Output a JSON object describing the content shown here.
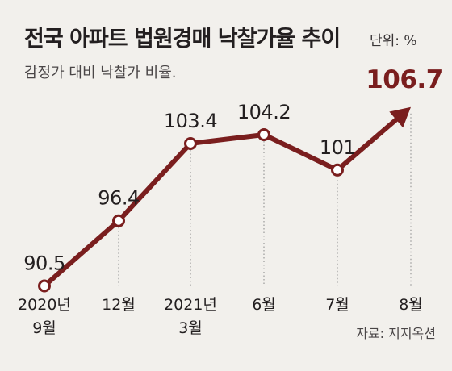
{
  "header": {
    "title": "전국 아파트 법원경매 낙찰가율 추이",
    "unit": "단위: %",
    "subtitle": "감정가 대비 낙찰가 비율."
  },
  "footer": {
    "source": "자료: 지지옥션"
  },
  "colors": {
    "line": "#7a1e1e",
    "text": "#231f20",
    "background": "#f2f0ec",
    "gridline": "#9a9a9a"
  },
  "chart_data": {
    "type": "line",
    "categories": [
      [
        "2020년",
        "9월"
      ],
      [
        "12월"
      ],
      [
        "2021년",
        "3월"
      ],
      [
        "6월"
      ],
      [
        "7월"
      ],
      [
        "8월"
      ]
    ],
    "series": [
      {
        "values": [
          90.5,
          96.4,
          103.4,
          104.2,
          101,
          106.7
        ]
      }
    ],
    "data_labels": [
      "90.5",
      "96.4",
      "103.4",
      "104.2",
      "101",
      "106.7"
    ],
    "ylim": [
      89,
      108
    ],
    "grid": "vertical dotted",
    "final_point": "arrow"
  }
}
